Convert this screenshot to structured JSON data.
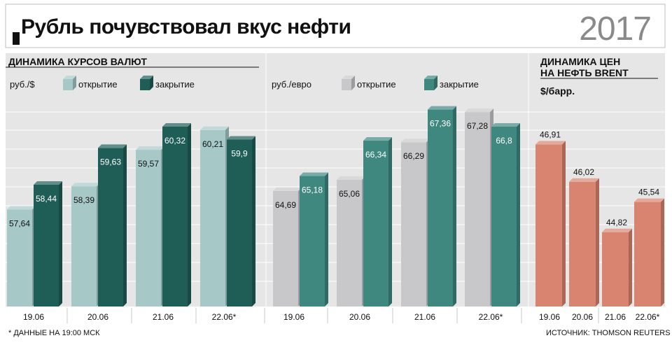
{
  "header": {
    "title": "Рубль почувствовал вкус нефти",
    "year": "2017"
  },
  "sections": {
    "currency_title": "ДИНАМИКА КУРСОВ ВАЛЮТ",
    "oil_title_line1": "ДИНАМИКА ЦЕН",
    "oil_title_line2": "НА НЕФТЬ BRENT",
    "oil_unit": "$/барр."
  },
  "legends": {
    "usd_unit": "руб./$",
    "eur_unit": "руб./евро",
    "open": "открытие",
    "close": "закрытие"
  },
  "footnotes": {
    "left": "* ДАННЫЕ НА 19:00 МСК",
    "right": "ИСТОЧНИК: THOMSON REUTERS"
  },
  "colors": {
    "background": "#ffffff",
    "panel": "#e6e6e6",
    "grid": "#ffffff",
    "usd_open": "#a6c9c7",
    "usd_close": "#1f5d57",
    "eur_open": "#c8c8ca",
    "eur_close": "#3f8880",
    "oil": "#d98470"
  },
  "chart_data": [
    {
      "type": "bar",
      "title": "руб./$",
      "categories": [
        "19.06",
        "20.06",
        "21.06",
        "22.06*"
      ],
      "series": [
        {
          "name": "открытие",
          "values": [
            57.64,
            58.39,
            59.57,
            60.21
          ],
          "labels": [
            "57,64",
            "58,39",
            "59,57",
            "60,21"
          ]
        },
        {
          "name": "закрытие",
          "values": [
            58.44,
            59.63,
            60.32,
            59.9
          ],
          "labels": [
            "58,44",
            "59,63",
            "60,32",
            "59,9"
          ]
        }
      ],
      "ylim": [
        54.5,
        61.7
      ]
    },
    {
      "type": "bar",
      "title": "руб./евро",
      "categories": [
        "19.06",
        "20.06",
        "21.06",
        "22.06*"
      ],
      "series": [
        {
          "name": "открытие",
          "values": [
            64.69,
            65.06,
            66.29,
            67.28
          ],
          "labels": [
            "64,69",
            "65,06",
            "66,29",
            "67,28"
          ]
        },
        {
          "name": "закрытие",
          "values": [
            65.18,
            66.34,
            67.36,
            66.8
          ],
          "labels": [
            "65,18",
            "66,34",
            "67,36",
            "66,8"
          ]
        }
      ],
      "ylim": [
        60.9,
        68.2
      ]
    },
    {
      "type": "bar",
      "title": "ДИНАМИКА ЦЕН НА НЕФТЬ BRENT",
      "ylabel": "$/барр.",
      "categories": [
        "19.06",
        "20.06",
        "21.06",
        "22.06*"
      ],
      "series": [
        {
          "name": "Brent",
          "values": [
            46.91,
            46.02,
            44.82,
            45.54
          ],
          "labels": [
            "46,91",
            "46,02",
            "44,82",
            "45,54"
          ]
        }
      ],
      "ylim": [
        43.05,
        47.6
      ]
    }
  ]
}
